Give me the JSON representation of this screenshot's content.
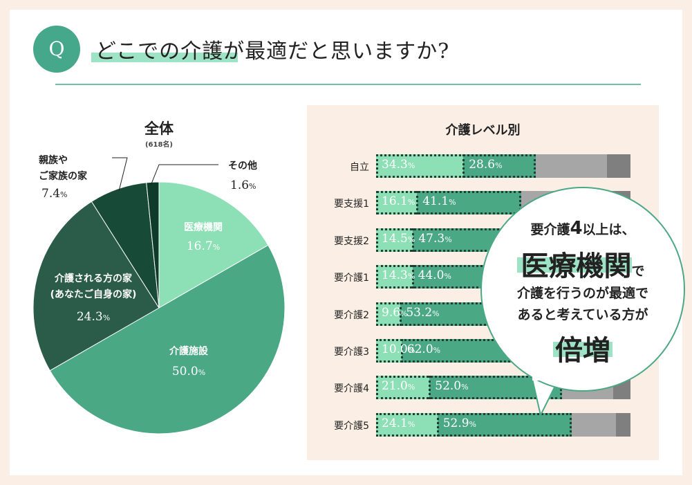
{
  "header": {
    "badge": "Q",
    "title": "どこでの介護が最適だと思いますか?"
  },
  "colors": {
    "light_green": "#8ddfb6",
    "mid_green": "#4aa885",
    "dark_green": "#2b5c49",
    "darker_green": "#174a37",
    "darkest_green": "#0f3b2a",
    "light_gray": "#a6a6a6",
    "dark_gray": "#7f7f7f",
    "panel_bg": "#fbeee4",
    "accent_line": "#6fbfa4"
  },
  "chart_data": [
    {
      "type": "pie",
      "title": "全体",
      "subtitle": "(618名)",
      "slices": [
        {
          "label": "医療機関",
          "value": 16.7
        },
        {
          "label": "介護施設",
          "value": 50.0
        },
        {
          "label": "介護される方の家\n(あなたご自身の家)",
          "value": 24.3
        },
        {
          "label": "親族や\nご家族の家",
          "value": 7.4
        },
        {
          "label": "その他",
          "value": 1.6
        }
      ]
    },
    {
      "type": "bar",
      "orientation": "horizontal",
      "stacked": true,
      "title": "介護レベル別",
      "categories": [
        "自立",
        "要支援1",
        "要支援2",
        "要介護1",
        "要介護2",
        "要介護3",
        "要介護4",
        "要介護5"
      ],
      "series": [
        {
          "values": [
            34.3,
            16.1,
            14.5,
            14.3,
            9.6,
            10.0,
            21.0,
            24.1
          ]
        },
        {
          "values": [
            28.6,
            41.1,
            47.3,
            44.0,
            53.2,
            62.0,
            52.0,
            52.9
          ]
        },
        {
          "values": [
            null,
            null,
            null,
            null,
            null,
            null,
            null,
            null
          ]
        },
        {
          "values": [
            null,
            null,
            null,
            null,
            null,
            null,
            null,
            null
          ]
        }
      ],
      "xlim": [
        0,
        100
      ]
    }
  ],
  "pie_labels": {
    "s0": {
      "name": "医療機関",
      "value": "16.7"
    },
    "s1": {
      "name": "介護施設",
      "value": "50.0"
    },
    "s2": {
      "name1": "介護される方の家",
      "name2": "(あなたご自身の家)",
      "value": "24.3"
    },
    "s3": {
      "name1": "親族や",
      "name2": "ご家族の家",
      "value": "7.4"
    },
    "s4": {
      "name": "その他",
      "value": "1.6"
    },
    "pct": "%"
  },
  "callout": {
    "line1_a": "要介護",
    "line1_num": "4",
    "line1_b": "以上は、",
    "line2_big": "医療機関",
    "line2_small": "で",
    "line3": "介護を行うのが最適で",
    "line4": "あると考えている方が",
    "line5": "倍増"
  }
}
